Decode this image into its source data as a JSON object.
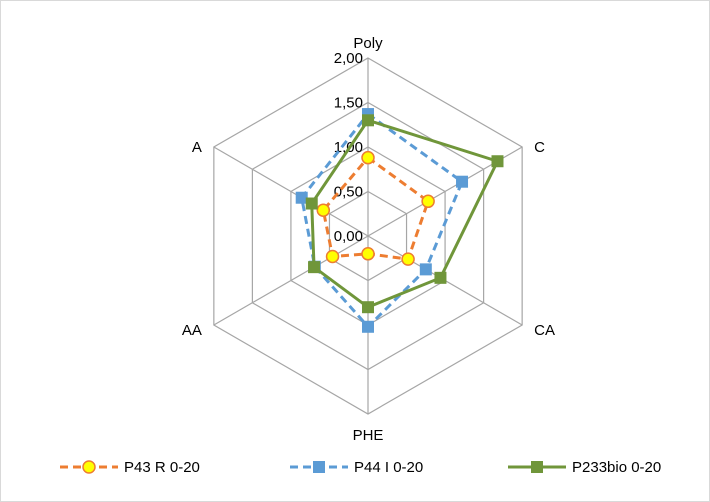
{
  "chart_data": {
    "type": "radar",
    "axes": [
      "Poly",
      "C",
      "CA",
      "PHE",
      "AA",
      "A"
    ],
    "rlim": [
      0,
      2
    ],
    "ticks": [
      {
        "value": 0.0,
        "label": "0,00"
      },
      {
        "value": 0.5,
        "label": "0,50"
      },
      {
        "value": 1.0,
        "label": "1,00"
      },
      {
        "value": 1.5,
        "label": "1,50"
      },
      {
        "value": 2.0,
        "label": "2,00"
      }
    ],
    "legend_position": "bottom",
    "series": [
      {
        "name": "P43 R 0-20",
        "values": [
          0.88,
          0.78,
          0.52,
          0.2,
          0.46,
          0.58
        ],
        "color": "#ed7d31",
        "line": "dashed",
        "marker": "circle",
        "marker_fill": "#ffff00"
      },
      {
        "name": "P44 I 0-20",
        "values": [
          1.37,
          1.22,
          0.75,
          1.02,
          0.69,
          0.86
        ],
        "color": "#5b9bd5",
        "line": "dashed",
        "marker": "square",
        "marker_fill": "#5b9bd5"
      },
      {
        "name": "P233bio 0-20",
        "values": [
          1.3,
          1.68,
          0.94,
          0.8,
          0.7,
          0.73
        ],
        "color": "#70963a",
        "line": "solid",
        "marker": "square",
        "marker_fill": "#70963a"
      }
    ]
  }
}
